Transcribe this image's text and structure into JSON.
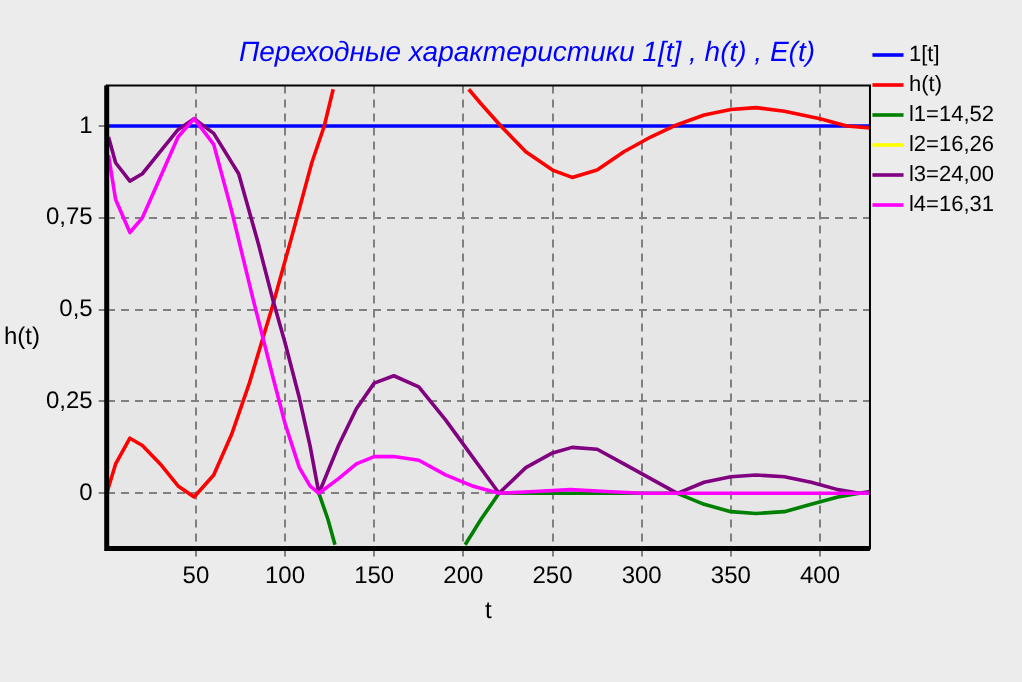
{
  "chart_data": {
    "type": "line",
    "title": "Переходные характеристики 1[t] , h(t) , E(t)",
    "xlabel": "t",
    "ylabel": "h(t)",
    "xlim": [
      0,
      428
    ],
    "ylim": [
      -0.15,
      1.11
    ],
    "xticks": [
      50,
      100,
      150,
      200,
      250,
      300,
      350,
      400
    ],
    "yticks": [
      0,
      {
        "value": 0.25,
        "label": "0,25"
      },
      {
        "value": 0.5,
        "label": "0,5"
      },
      {
        "value": 0.75,
        "label": "0,75"
      },
      1
    ],
    "grid": true,
    "legend": "right",
    "marker": "none",
    "line_style": "solid",
    "series": [
      {
        "name": "1[t]",
        "color": "#0000ff",
        "x": [
          0,
          428
        ],
        "values": [
          1,
          1
        ]
      },
      {
        "name": "h(t)",
        "color": "#ff0000",
        "x": [
          0,
          5,
          13,
          20,
          30,
          40,
          49,
          60,
          70,
          80,
          93,
          105,
          115,
          122,
          127,
          165,
          203,
          210,
          221,
          235,
          250,
          261,
          275,
          290,
          305,
          318,
          335,
          350,
          364,
          380,
          400,
          415,
          428
        ],
        "values": [
          0,
          0.08,
          0.15,
          0.13,
          0.08,
          0.02,
          -0.01,
          0.05,
          0.16,
          0.3,
          0.51,
          0.72,
          0.9,
          1.0,
          1.1,
          null,
          1.1,
          1.06,
          1.0,
          0.93,
          0.88,
          0.86,
          0.88,
          0.93,
          0.97,
          1.0,
          1.03,
          1.045,
          1.05,
          1.04,
          1.02,
          1.0,
          0.995
        ]
      },
      {
        "name": "l1=14,52",
        "color": "#008000",
        "x": [
          119,
          124,
          128,
          165,
          201,
          210,
          220,
          320,
          335,
          350,
          364,
          380,
          395,
          410,
          422
        ],
        "values": [
          0,
          -0.07,
          -0.14,
          null,
          -0.14,
          -0.07,
          0,
          0,
          -0.03,
          -0.05,
          -0.055,
          -0.05,
          -0.03,
          -0.01,
          0
        ]
      },
      {
        "name": "l2=16,26",
        "color": "#ffff00"
      },
      {
        "name": "l3=24,00",
        "color": "#800080",
        "x": [
          1,
          5,
          13,
          20,
          30,
          40,
          49,
          60,
          74,
          85,
          93,
          100,
          108,
          114,
          119,
          130,
          140,
          150,
          161,
          175,
          190,
          205,
          220,
          235,
          250,
          261,
          275,
          290,
          305,
          320,
          335,
          350,
          364,
          380,
          395,
          410,
          422,
          428
        ],
        "values": [
          0.97,
          0.9,
          0.85,
          0.87,
          0.93,
          0.99,
          1.02,
          0.98,
          0.87,
          0.68,
          0.53,
          0.41,
          0.26,
          0.13,
          0,
          0.13,
          0.23,
          0.3,
          0.32,
          0.29,
          0.2,
          0.1,
          0,
          0.07,
          0.11,
          0.125,
          0.12,
          0.08,
          0.04,
          0,
          0.03,
          0.045,
          0.05,
          0.045,
          0.03,
          0.01,
          0,
          0.005
        ]
      },
      {
        "name": "l4=16,31",
        "color": "#ff00ff",
        "x": [
          1,
          5,
          13,
          20,
          30,
          40,
          49,
          60,
          70,
          82,
          93,
          100,
          108,
          114,
          119,
          130,
          140,
          150,
          161,
          175,
          190,
          205,
          220,
          240,
          260,
          280,
          300,
          320,
          350,
          380,
          428
        ],
        "values": [
          0.92,
          0.8,
          0.71,
          0.75,
          0.86,
          0.97,
          1.02,
          0.95,
          0.77,
          0.53,
          0.32,
          0.19,
          0.07,
          0.02,
          0,
          0.04,
          0.08,
          0.1,
          0.1,
          0.09,
          0.05,
          0.02,
          0,
          0.005,
          0.01,
          0.005,
          0,
          0,
          0,
          0,
          0
        ]
      }
    ]
  }
}
